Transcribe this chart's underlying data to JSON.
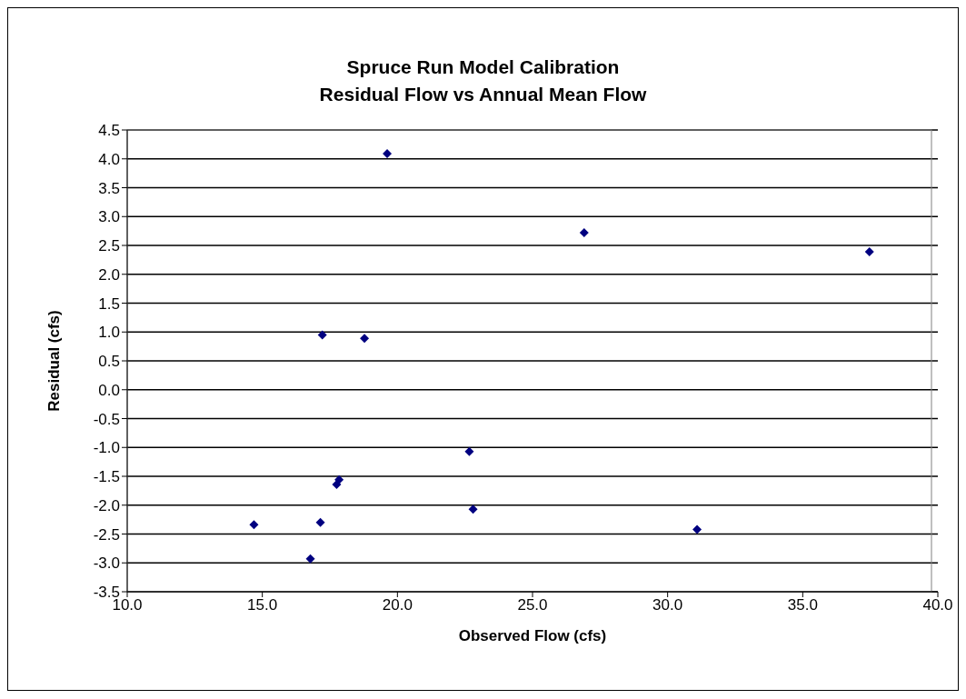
{
  "chart_data": {
    "type": "scatter",
    "title": "Spruce Run Model Calibration\nResidual Flow vs Annual Mean Flow",
    "xlabel": "Observed Flow (cfs)",
    "ylabel": "Residual (cfs)",
    "x": [
      14.69,
      16.78,
      17.15,
      17.22,
      17.75,
      17.84,
      18.78,
      19.62,
      22.66,
      22.8,
      26.91,
      31.09,
      37.47
    ],
    "values": [
      -2.34,
      -2.93,
      -2.3,
      0.95,
      -1.64,
      -1.56,
      0.89,
      4.09,
      -1.07,
      -2.07,
      2.72,
      -2.42,
      2.39
    ],
    "color": "#000080",
    "marker": "diamond",
    "grid": "y",
    "legend": false,
    "xlim": [
      10,
      40
    ],
    "xticks": [
      {
        "value": 10,
        "label": "10.0"
      },
      {
        "value": 15,
        "label": "15.0"
      },
      {
        "value": 20,
        "label": "20.0"
      },
      {
        "value": 25,
        "label": "25.0"
      },
      {
        "value": 30,
        "label": "30.0"
      },
      {
        "value": 35,
        "label": "35.0"
      },
      {
        "value": 40,
        "label": "40.0"
      }
    ],
    "ylim": [
      -3.5,
      4.5
    ],
    "yticks": [
      {
        "value": -3.5,
        "label": "-3.5"
      },
      {
        "value": -3,
        "label": "-3.0"
      },
      {
        "value": -2.5,
        "label": "-2.5"
      },
      {
        "value": -2,
        "label": "-2.0"
      },
      {
        "value": -1.5,
        "label": "-1.5"
      },
      {
        "value": -1,
        "label": "-1.0"
      },
      {
        "value": -0.5,
        "label": "-0.5"
      },
      {
        "value": 0,
        "label": "0.0"
      },
      {
        "value": 0.5,
        "label": "0.5"
      },
      {
        "value": 1,
        "label": "1.0"
      },
      {
        "value": 1.5,
        "label": "1.5"
      },
      {
        "value": 2,
        "label": "2.0"
      },
      {
        "value": 2.5,
        "label": "2.5"
      },
      {
        "value": 3,
        "label": "3.0"
      },
      {
        "value": 3.5,
        "label": "3.5"
      },
      {
        "value": 4,
        "label": "4.0"
      },
      {
        "value": 4.5,
        "label": "4.5"
      }
    ]
  }
}
